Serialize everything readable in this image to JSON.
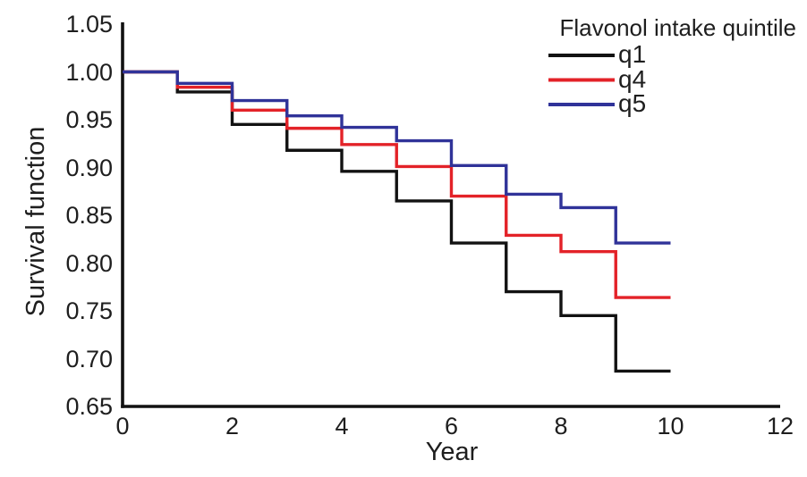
{
  "figure": {
    "background": "#ffffff",
    "text_color": "#1e1e1e",
    "axis_color": "#111111"
  },
  "chart_data": {
    "type": "line",
    "subtype": "step-survival",
    "title": "",
    "xlabel": "Year",
    "ylabel": "Survival function",
    "xlim": [
      0,
      12
    ],
    "ylim": [
      0.65,
      1.05
    ],
    "grid": "off",
    "legend_position": "top-right",
    "legend_title": "Flavonol intake quintile",
    "xticks": [
      {
        "label": "0",
        "value": 0
      },
      {
        "label": "2",
        "value": 2
      },
      {
        "label": "4",
        "value": 4
      },
      {
        "label": "6",
        "value": 6
      },
      {
        "label": "8",
        "value": 8
      },
      {
        "label": "10",
        "value": 10
      },
      {
        "label": "12",
        "value": 12
      }
    ],
    "yticks": [
      {
        "label": "1.05",
        "value": 1.05
      },
      {
        "label": "1.00",
        "value": 1.0
      },
      {
        "label": "0.95",
        "value": 0.95
      },
      {
        "label": "0.90",
        "value": 0.9
      },
      {
        "label": "0.85",
        "value": 0.85
      },
      {
        "label": "0.80",
        "value": 0.8
      },
      {
        "label": "0.75",
        "value": 0.75
      },
      {
        "label": "0.70",
        "value": 0.7
      },
      {
        "label": "0.65",
        "value": 0.65
      }
    ],
    "step_years": [
      0,
      1,
      2,
      3,
      4,
      5,
      6,
      7,
      8,
      9,
      10
    ],
    "series": [
      {
        "name": "q1",
        "color": "#121212",
        "values": [
          1.0,
          0.979,
          0.945,
          0.918,
          0.896,
          0.865,
          0.821,
          0.77,
          0.745,
          0.687
        ]
      },
      {
        "name": "q4",
        "color": "#e32228",
        "values": [
          1.0,
          0.984,
          0.96,
          0.941,
          0.924,
          0.901,
          0.87,
          0.829,
          0.812,
          0.764
        ]
      },
      {
        "name": "q5",
        "color": "#303399",
        "values": [
          1.0,
          0.988,
          0.97,
          0.954,
          0.942,
          0.928,
          0.902,
          0.872,
          0.858,
          0.821
        ]
      }
    ]
  }
}
